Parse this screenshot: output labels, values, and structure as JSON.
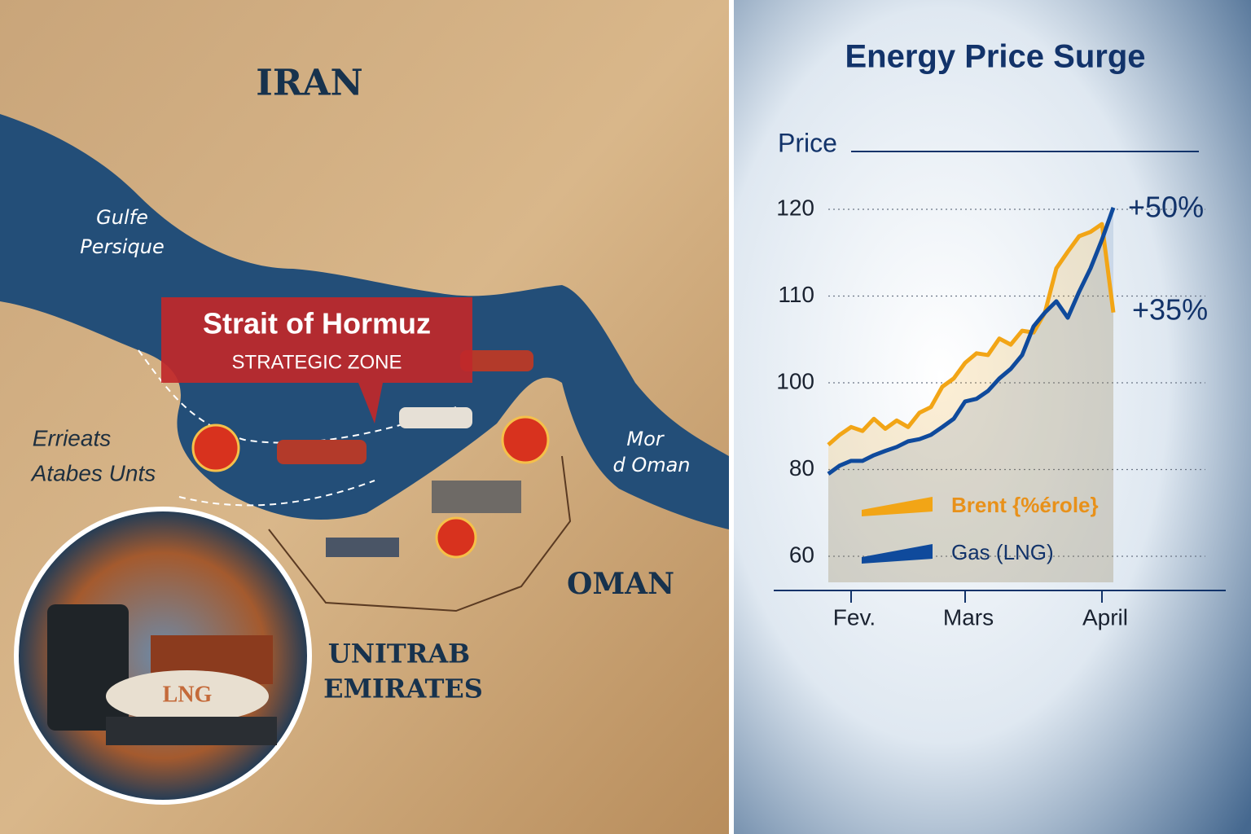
{
  "map": {
    "labels": {
      "country_north": "IRAN",
      "gulf_1": "Gulfe",
      "gulf_2": "Persique",
      "callout_title": "Strait of Hormuz",
      "callout_subtitle": "STRATEGIC ZONE",
      "west_1": "Errieats",
      "west_2": "Atabes Unts",
      "sea_1": "Mor",
      "sea_2": "d Oman",
      "country_south": "OMAN",
      "uae_1": "UNITRAB",
      "uae_2": "EMIRATES",
      "ship_label": "LNG"
    }
  },
  "chart_data": {
    "type": "line",
    "title": "Energy Price Surge",
    "y_label": "Price",
    "categories": [
      null,
      null,
      "Fev.",
      null,
      null,
      null,
      null,
      null,
      null,
      null,
      null,
      null,
      "Mars",
      null,
      null,
      null,
      null,
      null,
      null,
      null,
      null,
      null,
      null,
      null,
      "April",
      null
    ],
    "series": [
      {
        "name": "Brent {%érole}",
        "color": "#f2a516",
        "values": [
          85.7,
          88.0,
          89.8,
          88.9,
          91.7,
          89.4,
          91.3,
          89.8,
          93.1,
          94.4,
          99.1,
          100.5,
          102.3,
          103.4,
          103.2,
          105.1,
          104.4,
          106.0,
          105.8,
          108.1,
          113.2,
          115.1,
          116.9,
          117.4,
          118.3,
          108.1
        ]
      },
      {
        "name": "Gas (LNG)",
        "color": "#0f4a9c",
        "values": [
          79.0,
          80.9,
          82.0,
          82.0,
          83.3,
          84.3,
          85.2,
          86.5,
          87.0,
          88.0,
          89.8,
          91.7,
          95.7,
          96.3,
          98.1,
          100.5,
          101.6,
          103.2,
          106.5,
          108.1,
          109.4,
          107.5,
          110.5,
          113.2,
          116.5,
          120.2
        ]
      }
    ],
    "annotations": [
      "+50%",
      "+35%"
    ],
    "ylim": [
      60,
      120
    ],
    "yticks": [
      60,
      80,
      100,
      110,
      120
    ],
    "grid": true
  }
}
